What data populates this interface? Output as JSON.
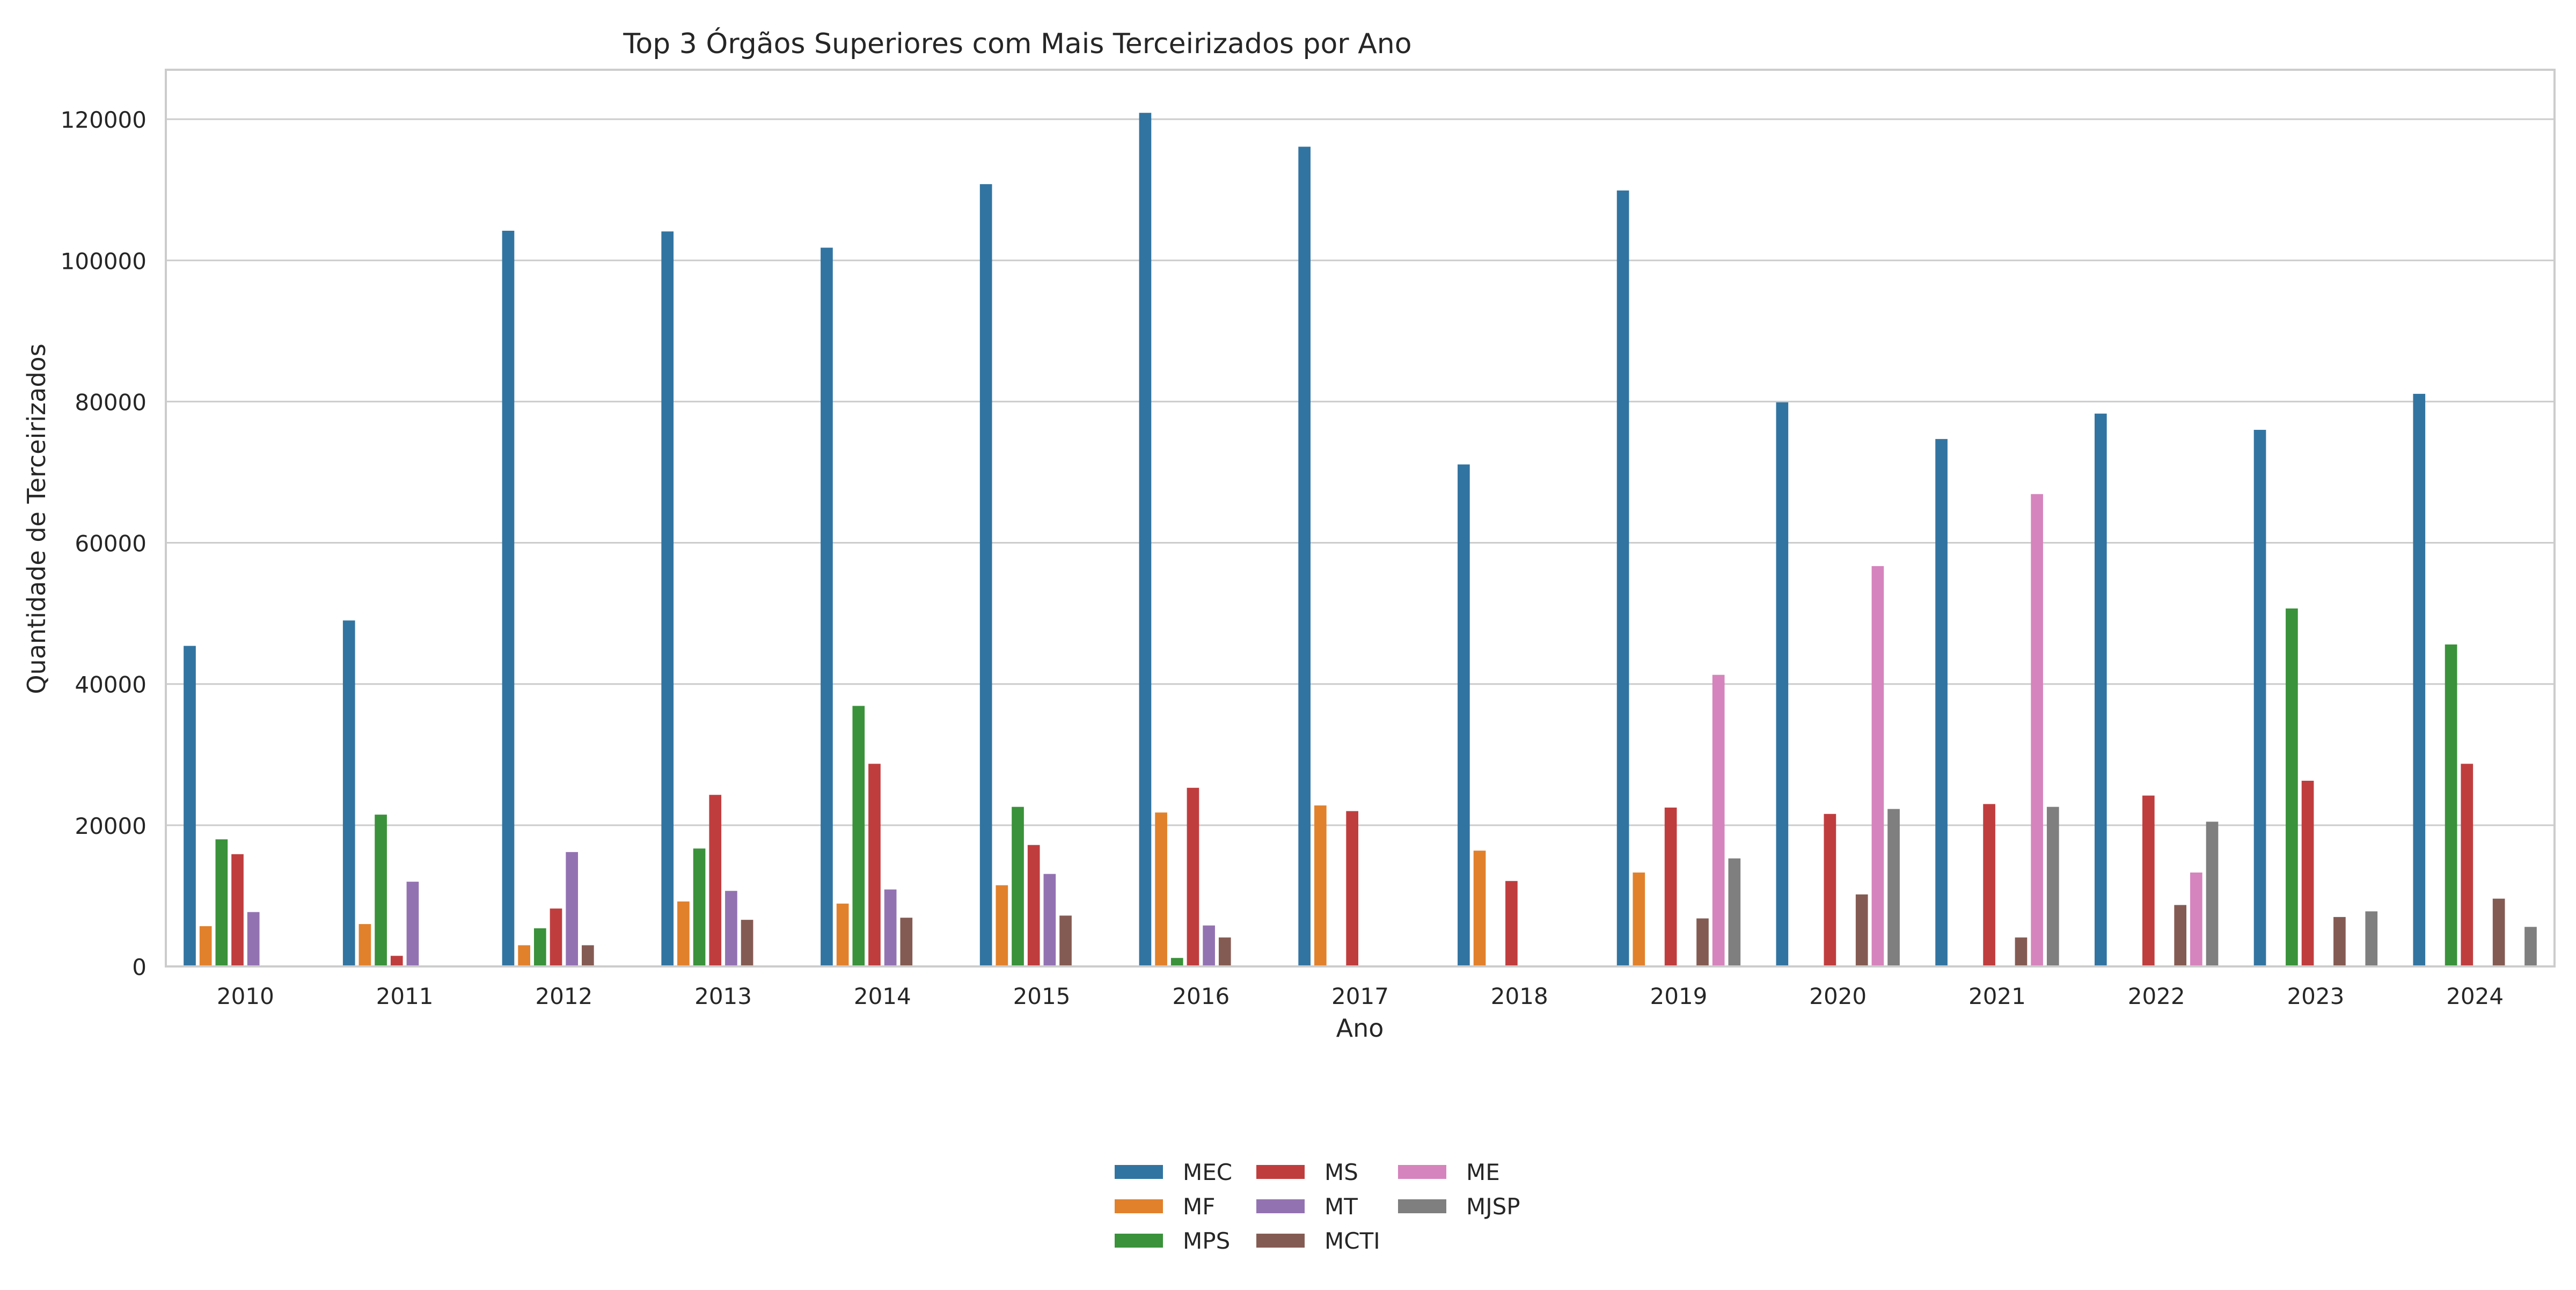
{
  "chart_data": {
    "type": "bar",
    "title": "Top 3 Órgãos Superiores com Mais Terceirizados por Ano",
    "xlabel": "Ano",
    "ylabel": "Quantidade de Terceirizados",
    "categories": [
      "2010",
      "2011",
      "2012",
      "2013",
      "2014",
      "2015",
      "2016",
      "2017",
      "2018",
      "2019",
      "2020",
      "2021",
      "2022",
      "2023",
      "2024"
    ],
    "ylim": [
      0,
      127000
    ],
    "yticks": [
      0,
      20000,
      40000,
      60000,
      80000,
      100000,
      120000
    ],
    "grid": true,
    "legend_position": "bottom-center",
    "series": [
      {
        "name": "MEC",
        "color": "#3274a1",
        "values": [
          45400,
          49000,
          104200,
          104100,
          101800,
          110800,
          120900,
          116100,
          71100,
          109900,
          79900,
          74700,
          78300,
          76000,
          81100
        ]
      },
      {
        "name": "MF",
        "color": "#e1812c",
        "values": [
          5700,
          6000,
          3000,
          9200,
          8900,
          11500,
          21800,
          22800,
          16400,
          13300,
          null,
          null,
          null,
          null,
          null
        ]
      },
      {
        "name": "MPS",
        "color": "#3a923a",
        "values": [
          18000,
          21500,
          5400,
          16700,
          36900,
          22600,
          1200,
          null,
          null,
          null,
          null,
          null,
          null,
          50700,
          45600
        ]
      },
      {
        "name": "MS",
        "color": "#c03d3e",
        "values": [
          15900,
          1500,
          8200,
          24300,
          28700,
          17200,
          25300,
          22000,
          12100,
          22500,
          21600,
          23000,
          24200,
          26300,
          28700
        ]
      },
      {
        "name": "MT",
        "color": "#9372b2",
        "values": [
          7700,
          12000,
          16200,
          10700,
          10900,
          13100,
          5800,
          null,
          null,
          null,
          null,
          null,
          null,
          null,
          null
        ]
      },
      {
        "name": "MCTI",
        "color": "#845b53",
        "values": [
          null,
          null,
          3000,
          6600,
          6900,
          7200,
          4100,
          null,
          null,
          6800,
          10200,
          4100,
          8700,
          7000,
          9600
        ]
      },
      {
        "name": "ME",
        "color": "#d684bd",
        "values": [
          null,
          null,
          null,
          null,
          null,
          null,
          null,
          null,
          null,
          41300,
          56700,
          66900,
          13300,
          null,
          null
        ]
      },
      {
        "name": "MJSP",
        "color": "#7f7f7f",
        "values": [
          null,
          null,
          null,
          null,
          null,
          null,
          null,
          null,
          null,
          15300,
          22300,
          22600,
          20500,
          7800,
          5600
        ]
      }
    ]
  }
}
